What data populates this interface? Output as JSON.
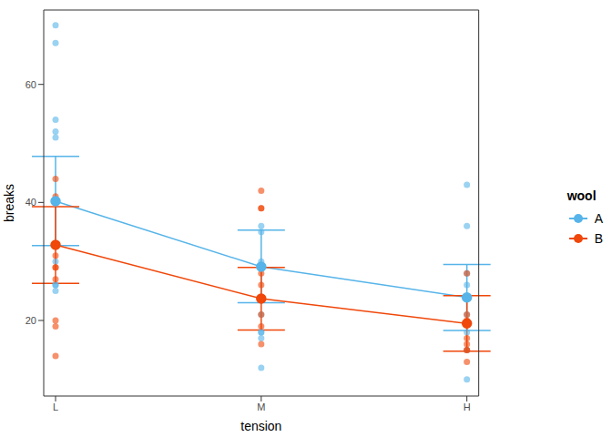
{
  "chart_data": {
    "type": "line",
    "x_label": "tension",
    "y_label": "breaks",
    "legend_title": "wool",
    "categories": [
      "L",
      "M",
      "H"
    ],
    "ylim": [
      7.2,
      72.6
    ],
    "yticks": [
      20,
      40,
      60
    ],
    "grid": false,
    "legend": "right",
    "series": [
      {
        "name": "A",
        "color": "#56B4E9",
        "marker": "circle",
        "values": [
          40.2,
          29.1,
          23.9
        ],
        "error_lower": [
          32.7,
          23.0,
          18.3
        ],
        "error_upper": [
          47.8,
          35.3,
          29.5
        ],
        "points": [
          [
            26,
            30,
            54,
            25,
            70,
            52,
            51,
            26,
            67
          ],
          [
            18,
            21,
            29,
            17,
            12,
            18,
            35,
            30,
            36
          ],
          [
            36,
            21,
            24,
            18,
            10,
            43,
            28,
            15,
            26
          ]
        ]
      },
      {
        "name": "B",
        "color": "#F0470A",
        "marker": "circle",
        "values": [
          32.8,
          23.7,
          19.5
        ],
        "error_lower": [
          26.3,
          18.4,
          14.8
        ],
        "error_upper": [
          39.3,
          29.0,
          24.2
        ],
        "points": [
          [
            27,
            14,
            29,
            19,
            29,
            31,
            41,
            20,
            44
          ],
          [
            42,
            26,
            19,
            16,
            39,
            28,
            21,
            39,
            29
          ],
          [
            20,
            21,
            24,
            17,
            13,
            15,
            15,
            16,
            28
          ]
        ]
      }
    ]
  }
}
